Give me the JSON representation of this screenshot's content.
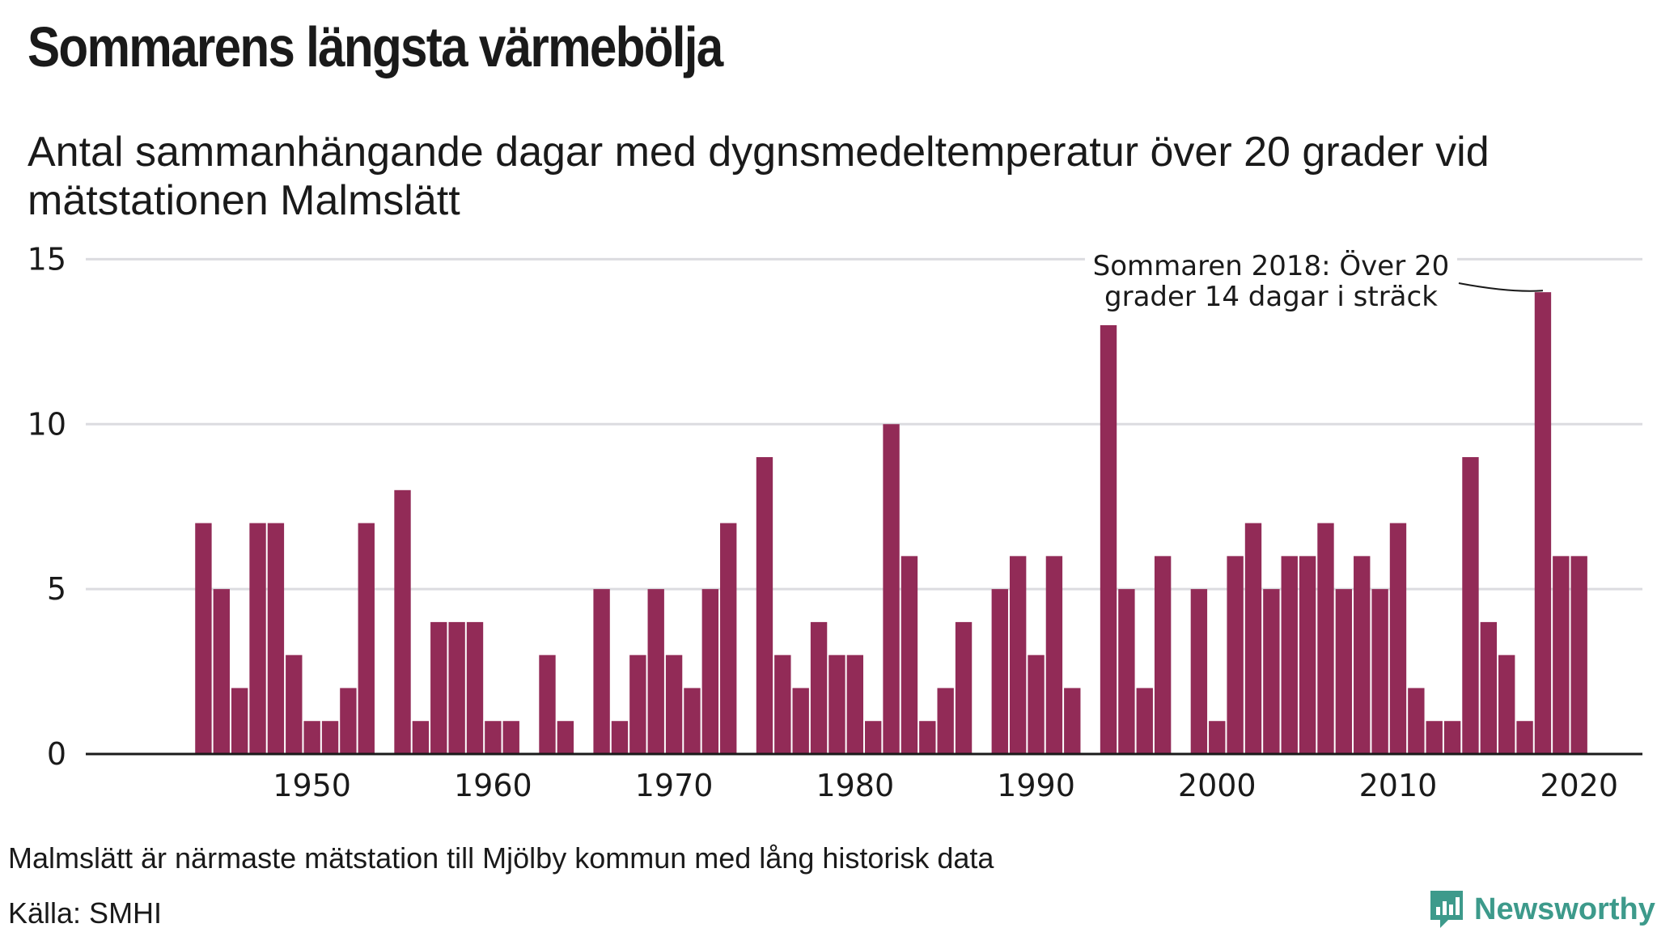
{
  "header": {
    "title": "Sommarens längsta värmebölja",
    "subtitle": "Antal sammanhängande dagar med dygnsmedeltemperatur över 20 grader vid mätstationen Malmslätt"
  },
  "footer": {
    "note": "Malmslätt är närmaste mätstation till Mjölby kommun med lång historisk data",
    "source": "Källa: SMHI",
    "brand": "Newsworthy"
  },
  "colors": {
    "bar": "#922b57",
    "grid": "#dcdce0",
    "axis": "#1a1a1a",
    "brand": "#3d9a8b"
  },
  "chart_data": {
    "type": "bar",
    "x": [
      1944,
      1945,
      1946,
      1947,
      1948,
      1949,
      1950,
      1951,
      1952,
      1953,
      1954,
      1955,
      1956,
      1957,
      1958,
      1959,
      1960,
      1961,
      1962,
      1963,
      1964,
      1965,
      1966,
      1967,
      1968,
      1969,
      1970,
      1971,
      1972,
      1973,
      1974,
      1975,
      1976,
      1977,
      1978,
      1979,
      1980,
      1981,
      1982,
      1983,
      1984,
      1985,
      1986,
      1987,
      1988,
      1989,
      1990,
      1991,
      1992,
      1993,
      1994,
      1995,
      1996,
      1997,
      1998,
      1999,
      2000,
      2001,
      2002,
      2003,
      2004,
      2005,
      2006,
      2007,
      2008,
      2009,
      2010,
      2011,
      2012,
      2013,
      2014,
      2015,
      2016,
      2017,
      2018,
      2019,
      2020
    ],
    "values": [
      7,
      5,
      2,
      7,
      7,
      3,
      1,
      1,
      2,
      7,
      0,
      8,
      1,
      4,
      4,
      4,
      1,
      1,
      0,
      3,
      1,
      0,
      5,
      1,
      3,
      5,
      3,
      2,
      5,
      7,
      0,
      9,
      3,
      2,
      4,
      3,
      3,
      1,
      10,
      6,
      1,
      2,
      4,
      0,
      5,
      6,
      3,
      6,
      2,
      0,
      13,
      5,
      2,
      6,
      0,
      5,
      1,
      6,
      7,
      5,
      6,
      6,
      7,
      5,
      6,
      5,
      7,
      2,
      1,
      1,
      9,
      4,
      3,
      1,
      14,
      6,
      6
    ],
    "xticks": [
      1950,
      1960,
      1970,
      1980,
      1990,
      2000,
      2010,
      2020
    ],
    "yticks": [
      0,
      5,
      10,
      15
    ],
    "ylim": [
      0,
      15.5
    ],
    "xlim": [
      1937.5,
      2023.5
    ],
    "grid": true,
    "annotation": {
      "text_line1": "Sommaren 2018: Över 20",
      "text_line2": "grader 14 dagar i sträck",
      "x": 2018,
      "y": 14
    }
  }
}
